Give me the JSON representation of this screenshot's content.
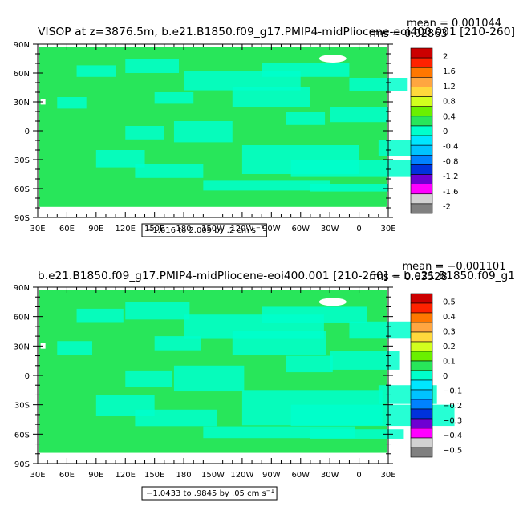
{
  "chart_data": [
    {
      "type": "heatmap",
      "title": "VISOP at z=3876.5m, b.e21.B1850.f09_g17.PMIP4-midPliocene-eoi400.001  [210-260]",
      "stats": {
        "mean": "mean = 0.001044",
        "rms": "rms = 0.02863"
      },
      "x_ticks": [
        "30E",
        "60E",
        "90E",
        "120E",
        "150E",
        "180",
        "150W",
        "120W",
        "90W",
        "60W",
        "30W",
        "0",
        "30E"
      ],
      "y_ticks": [
        "90N",
        "60N",
        "30N",
        "0",
        "30S",
        "60S",
        "90S"
      ],
      "colorbar": {
        "labels": [
          "2",
          "1.6",
          "1.2",
          "0.8",
          "0.4",
          "0",
          "-0.4",
          "-0.8",
          "-1.2",
          "-1.6",
          "-2"
        ],
        "colors": [
          "#cc0000",
          "#ff2200",
          "#ff7700",
          "#ffa640",
          "#ffd83c",
          "#d2ff1e",
          "#6af000",
          "#28e65a",
          "#00ffcc",
          "#00e6ff",
          "#00c3ff",
          "#0082ff",
          "#0032dc",
          "#6e00d2",
          "#ff00ff",
          "#d2d2d2",
          "#808080"
        ]
      },
      "range_label": "−1.616 to 2.009 by .2 cm s",
      "unit_superscript": "−1"
    },
    {
      "type": "heatmap",
      "title": "b.e21.B1850.f09_g17.PMIP4-midPliocene-eoi400.001  [210-260] − b.e21.B1850.f09_g1",
      "stats": {
        "mean": "mean = −0.001101",
        "rms": "rms = 0.03528"
      },
      "x_ticks": [
        "30E",
        "60E",
        "90E",
        "120E",
        "150E",
        "180",
        "150W",
        "120W",
        "90W",
        "60W",
        "30W",
        "0",
        "30E"
      ],
      "y_ticks": [
        "90N",
        "60N",
        "30N",
        "0",
        "30S",
        "60S",
        "90S"
      ],
      "colorbar": {
        "labels": [
          "0.5",
          "0.4",
          "0.3",
          "0.2",
          "0.1",
          "0",
          "−0.1",
          "−0.2",
          "−0.3",
          "−0.4",
          "−0.5"
        ],
        "colors": [
          "#cc0000",
          "#ff2200",
          "#ff7700",
          "#ffa640",
          "#ffd83c",
          "#d2ff1e",
          "#6af000",
          "#28e65a",
          "#00ffcc",
          "#00e6ff",
          "#00c3ff",
          "#0082ff",
          "#0032dc",
          "#6e00d2",
          "#ff00ff",
          "#d2d2d2",
          "#808080"
        ]
      },
      "range_label": "−1.0433 to .9845 by .05 cm s",
      "unit_superscript": "−1"
    }
  ]
}
